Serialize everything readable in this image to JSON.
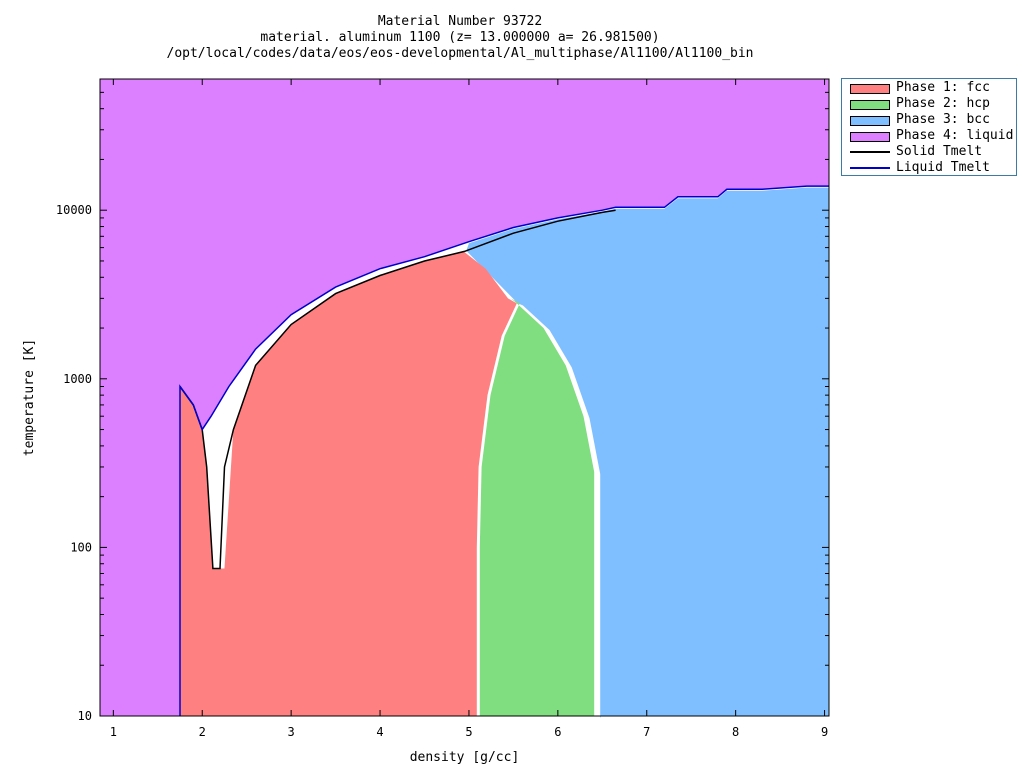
{
  "title": {
    "line1": "Material Number 93722",
    "line2": "material. aluminum 1100 (z= 13.000000 a= 26.981500)",
    "line3": "/opt/local/codes/data/eos/eos-developmental/Al_multiphase/Al1100/Al1100_bin"
  },
  "chart_data": {
    "type": "area",
    "xlabel": "density [g/cc]",
    "ylabel": "temperature [K]",
    "xlim": [
      0.85,
      9.05
    ],
    "ylim": [
      10,
      60000
    ],
    "y_scale": "log",
    "x_ticks": [
      1,
      2,
      3,
      4,
      5,
      6,
      7,
      8,
      9
    ],
    "y_ticks": [
      10,
      100,
      1000,
      10000
    ],
    "legend_position": "outside-right-top",
    "grid": false,
    "series": [
      {
        "name": "Phase 1: fcc",
        "kind": "region",
        "color": "#ff8080"
      },
      {
        "name": "Phase 2: hcp",
        "kind": "region",
        "color": "#80dd80"
      },
      {
        "name": "Phase 3: bcc",
        "kind": "region",
        "color": "#80bfff"
      },
      {
        "name": "Phase 4: liquid",
        "kind": "region",
        "color": "#dd80ff"
      },
      {
        "name": "Solid Tmelt",
        "kind": "line",
        "color": "#000000"
      },
      {
        "name": "Liquid Tmelt",
        "kind": "line",
        "color": "#0000cc"
      }
    ],
    "liquid_tmelt": {
      "x": [
        1.75,
        1.75,
        1.9,
        2.0,
        2.1,
        2.3,
        2.6,
        3.0,
        3.5,
        4.0,
        4.5,
        5.0,
        5.5,
        6.0,
        6.5,
        6.65,
        7.2,
        7.35,
        7.8,
        7.9,
        8.3,
        8.8,
        9.05
      ],
      "y": [
        10,
        900,
        700,
        500,
        600,
        900,
        1500,
        2400,
        3500,
        4500,
        5300,
        6500,
        7900,
        9000,
        10000,
        10400,
        10400,
        12000,
        12000,
        13300,
        13300,
        13900,
        13900
      ]
    },
    "solid_tmelt": {
      "x": [
        1.75,
        1.9,
        2.0,
        2.05,
        2.12,
        2.2,
        2.25,
        2.35,
        2.6,
        3.0,
        3.5,
        4.0,
        4.5,
        4.95,
        5.5,
        6.0,
        6.5,
        6.65
      ],
      "y": [
        900,
        700,
        500,
        300,
        75,
        75,
        300,
        500,
        1200,
        2100,
        3200,
        4100,
        5000,
        5700,
        7300,
        8600,
        9700,
        10000
      ]
    },
    "fcc_hcp_boundary": {
      "x": [
        4.95,
        5.2,
        5.45,
        5.55,
        5.38,
        5.22,
        5.12,
        5.1,
        5.1
      ],
      "y": [
        5700,
        4500,
        3000,
        2800,
        1800,
        800,
        300,
        100,
        10
      ]
    },
    "hcp_bcc_boundary": {
      "x": [
        5.55,
        5.85,
        6.1,
        6.3,
        6.42,
        6.42
      ],
      "y": [
        2800,
        2000,
        1200,
        600,
        280,
        10
      ]
    }
  }
}
